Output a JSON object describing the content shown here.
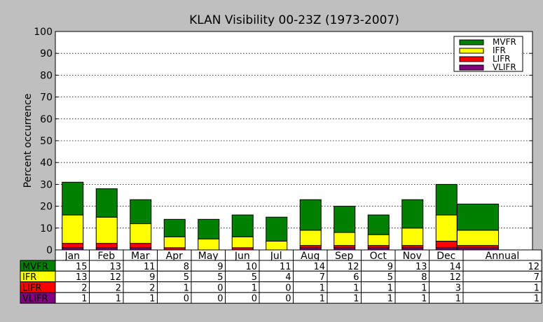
{
  "chart_data": {
    "type": "bar",
    "stacked": true,
    "title": "KLAN Visibility 00-23Z (1973-2007)",
    "ylabel": "Percent occurrence",
    "xlabel": "",
    "ylim": [
      0,
      100
    ],
    "yticks": [
      0,
      10,
      20,
      30,
      40,
      50,
      60,
      70,
      80,
      90,
      100
    ],
    "grid": "horizontal dotted",
    "legend_position": "top-right",
    "categories": [
      "Jan",
      "Feb",
      "Mar",
      "Apr",
      "May",
      "Jun",
      "Jul",
      "Aug",
      "Sep",
      "Oct",
      "Nov",
      "Dec",
      "Annual"
    ],
    "series": [
      {
        "name": "VLIFR",
        "color": "#800080",
        "values": [
          1,
          1,
          1,
          0,
          0,
          0,
          0,
          1,
          1,
          1,
          1,
          1,
          1
        ]
      },
      {
        "name": "LIFR",
        "color": "#ff0000",
        "values": [
          2,
          2,
          2,
          1,
          0,
          1,
          0,
          1,
          1,
          1,
          1,
          3,
          1
        ]
      },
      {
        "name": "IFR",
        "color": "#ffff00",
        "values": [
          13,
          12,
          9,
          5,
          5,
          5,
          4,
          7,
          6,
          5,
          8,
          12,
          7
        ]
      },
      {
        "name": "MVFR",
        "color": "#008000",
        "values": [
          15,
          13,
          11,
          8,
          9,
          10,
          11,
          14,
          12,
          9,
          13,
          14,
          12
        ]
      }
    ],
    "table_row_order": [
      "MVFR",
      "IFR",
      "LIFR",
      "VLIFR"
    ],
    "legend_order": [
      "MVFR",
      "IFR",
      "LIFR",
      "VLIFR"
    ]
  }
}
